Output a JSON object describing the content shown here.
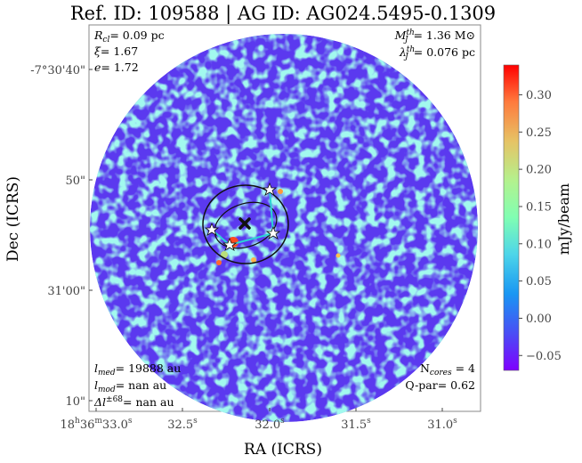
{
  "title": "Ref. ID: 109588 | AG ID: AG024.5495-0.1309",
  "axes": {
    "xlabel": "RA (ICRS)",
    "ylabel": "Dec (ICRS)",
    "xticks": [
      {
        "h": "18",
        "m": "36",
        "s": "33.0",
        "label_full": true
      },
      {
        "s": "32.5"
      },
      {
        "s": "32.0"
      },
      {
        "s": "31.5"
      },
      {
        "s": "31.0"
      }
    ],
    "yticks": [
      "-7°30'40\"",
      "50\"",
      "31'00\"",
      "10\""
    ]
  },
  "colorbar": {
    "label": "mJy/beam",
    "min": -0.07,
    "max": 0.34,
    "ticks": [
      "0.30",
      "0.25",
      "0.20",
      "0.15",
      "0.10",
      "0.05",
      "0.00",
      "−0.05"
    ],
    "tick_values": [
      0.3,
      0.25,
      0.2,
      0.15,
      0.1,
      0.05,
      0.0,
      -0.05
    ],
    "colormap": "rainbow"
  },
  "annotations": {
    "top_left": [
      "R_cl= 0.09 pc",
      "ξ= 1.67",
      "e= 1.72"
    ],
    "top_right": [
      "M_J^th= 1.36 M⊙",
      "λ_J^th= 0.076 pc"
    ],
    "bottom_left": [
      "l_med= 19888 au",
      "l_mod= nan au",
      "Δl^±68= nan au"
    ],
    "bottom_right": [
      "N_cores = 4",
      "Q-par= 0.62"
    ]
  },
  "colors": {
    "background_map": "#5a3cf0",
    "mst_line": "#2ad4d4",
    "outline": "#111111"
  }
}
